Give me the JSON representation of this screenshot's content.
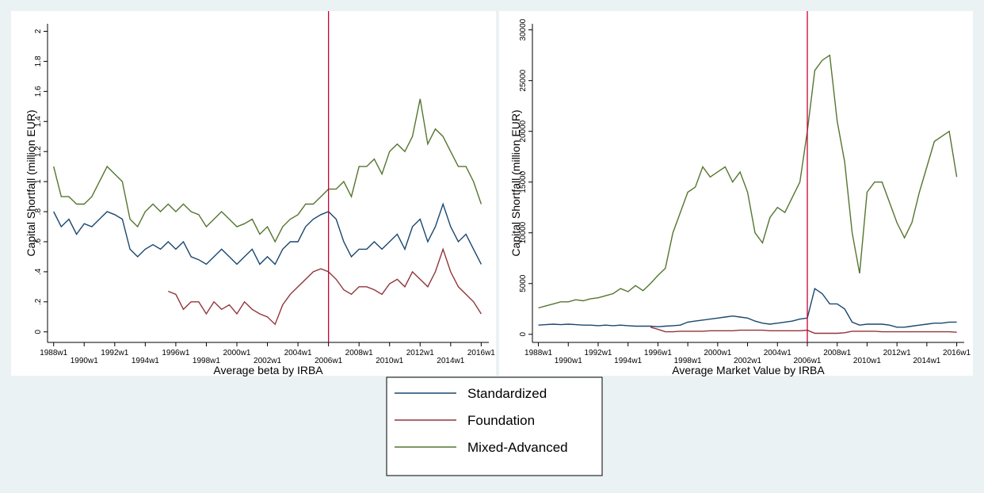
{
  "chart_data": [
    {
      "type": "line",
      "ylabel": "Capital Shortfall (million EUR)",
      "xlabel": "Average beta by IRBA",
      "xlim": [
        1987.6,
        2016.5
      ],
      "ylim": [
        -0.07,
        2.05
      ],
      "xticks": [
        {
          "value": 1988,
          "label": "1988w1"
        },
        {
          "value": 1990,
          "label": "1990w1"
        },
        {
          "value": 1992,
          "label": "1992w1"
        },
        {
          "value": 1994,
          "label": "1994w1"
        },
        {
          "value": 1996,
          "label": "1996w1"
        },
        {
          "value": 1998,
          "label": "1998w1"
        },
        {
          "value": 2000,
          "label": "2000w1"
        },
        {
          "value": 2002,
          "label": "2002w1"
        },
        {
          "value": 2004,
          "label": "2004w1"
        },
        {
          "value": 2006,
          "label": "2006w1"
        },
        {
          "value": 2008,
          "label": "2008w1"
        },
        {
          "value": 2010,
          "label": "2010w1"
        },
        {
          "value": 2012,
          "label": "2012w1"
        },
        {
          "value": 2014,
          "label": "2014w1"
        },
        {
          "value": 2016,
          "label": "2016w1"
        }
      ],
      "yticks": [
        0,
        {
          "value": 0.2,
          "label": ".2"
        },
        {
          "value": 0.4,
          "label": ".4"
        },
        {
          "value": 0.6,
          "label": ".6"
        },
        {
          "value": 0.8,
          "label": ".8"
        },
        1,
        {
          "value": 1.2,
          "label": "1.2"
        },
        {
          "value": 1.4,
          "label": "1.4"
        },
        {
          "value": 1.6,
          "label": "1.6"
        },
        {
          "value": 1.8,
          "label": "1.8"
        },
        2
      ],
      "vline": {
        "value": 2006,
        "color": "#c10534"
      },
      "x": [
        1988,
        1988.5,
        1989,
        1989.5,
        1990,
        1990.5,
        1991,
        1991.5,
        1992,
        1992.5,
        1993,
        1993.5,
        1994,
        1994.5,
        1995,
        1995.5,
        1996,
        1996.5,
        1997,
        1997.5,
        1998,
        1998.5,
        1999,
        1999.5,
        2000,
        2000.5,
        2001,
        2001.5,
        2002,
        2002.5,
        2003,
        2003.5,
        2004,
        2004.5,
        2005,
        2005.5,
        2006,
        2006.5,
        2007,
        2007.5,
        2008,
        2008.5,
        2009,
        2009.5,
        2010,
        2010.5,
        2011,
        2011.5,
        2012,
        2012.5,
        2013,
        2013.5,
        2014,
        2014.5,
        2015,
        2015.5,
        2016
      ],
      "series": [
        {
          "name": "Standardized",
          "color": "#1a476f",
          "values": [
            0.8,
            0.7,
            0.75,
            0.65,
            0.72,
            0.7,
            0.75,
            0.8,
            0.78,
            0.75,
            0.55,
            0.5,
            0.55,
            0.58,
            0.55,
            0.6,
            0.55,
            0.6,
            0.5,
            0.48,
            0.45,
            0.5,
            0.55,
            0.5,
            0.45,
            0.5,
            0.55,
            0.45,
            0.5,
            0.45,
            0.55,
            0.6,
            0.6,
            0.7,
            0.75,
            0.78,
            0.8,
            0.75,
            0.6,
            0.5,
            0.55,
            0.55,
            0.6,
            0.55,
            0.6,
            0.65,
            0.55,
            0.7,
            0.75,
            0.6,
            0.7,
            0.85,
            0.7,
            0.6,
            0.65,
            0.55,
            0.45
          ]
        },
        {
          "name": "Foundation",
          "color": "#90353b",
          "values": [
            null,
            null,
            null,
            null,
            null,
            null,
            null,
            null,
            null,
            null,
            null,
            null,
            null,
            null,
            null,
            0.27,
            0.25,
            0.15,
            0.2,
            0.2,
            0.12,
            0.2,
            0.15,
            0.18,
            0.12,
            0.2,
            0.15,
            0.12,
            0.1,
            0.05,
            0.18,
            0.25,
            0.3,
            0.35,
            0.4,
            0.42,
            0.4,
            0.35,
            0.28,
            0.25,
            0.3,
            0.3,
            0.28,
            0.25,
            0.32,
            0.35,
            0.3,
            0.4,
            0.35,
            0.3,
            0.4,
            0.55,
            0.4,
            0.3,
            0.25,
            0.2,
            0.12
          ]
        },
        {
          "name": "Mixed-Advanced",
          "color": "#55752f",
          "values": [
            1.1,
            0.9,
            0.9,
            0.85,
            0.85,
            0.9,
            1.0,
            1.1,
            1.05,
            1.0,
            0.75,
            0.7,
            0.8,
            0.85,
            0.8,
            0.85,
            0.8,
            0.85,
            0.8,
            0.78,
            0.7,
            0.75,
            0.8,
            0.75,
            0.7,
            0.72,
            0.75,
            0.65,
            0.7,
            0.6,
            0.7,
            0.75,
            0.78,
            0.85,
            0.85,
            0.9,
            0.95,
            0.95,
            1.0,
            0.9,
            1.1,
            1.1,
            1.15,
            1.05,
            1.2,
            1.25,
            1.2,
            1.3,
            1.55,
            1.25,
            1.35,
            1.3,
            1.2,
            1.1,
            1.1,
            1.0,
            0.85
          ]
        }
      ]
    },
    {
      "type": "line",
      "ylabel": "Capital Shortfall (million EUR)",
      "xlabel": "Average Market Value by IRBA",
      "xlim": [
        1987.6,
        2016.5
      ],
      "ylim": [
        -800,
        30600
      ],
      "xticks": [
        {
          "value": 1988,
          "label": "1988w1"
        },
        {
          "value": 1990,
          "label": "1990w1"
        },
        {
          "value": 1992,
          "label": "1992w1"
        },
        {
          "value": 1994,
          "label": "1994w1"
        },
        {
          "value": 1996,
          "label": "1996w1"
        },
        {
          "value": 1998,
          "label": "1998w1"
        },
        {
          "value": 2000,
          "label": "2000w1"
        },
        {
          "value": 2002,
          "label": "2002w1"
        },
        {
          "value": 2004,
          "label": "2004w1"
        },
        {
          "value": 2006,
          "label": "2006w1"
        },
        {
          "value": 2008,
          "label": "2008w1"
        },
        {
          "value": 2010,
          "label": "2010w1"
        },
        {
          "value": 2012,
          "label": "2012w1"
        },
        {
          "value": 2014,
          "label": "2014w1"
        },
        {
          "value": 2016,
          "label": "2016w1"
        }
      ],
      "yticks": [
        0,
        5000,
        10000,
        15000,
        20000,
        25000,
        30000
      ],
      "vline": {
        "value": 2006,
        "color": "#c10534"
      },
      "x": [
        1988,
        1988.5,
        1989,
        1989.5,
        1990,
        1990.5,
        1991,
        1991.5,
        1992,
        1992.5,
        1993,
        1993.5,
        1994,
        1994.5,
        1995,
        1995.5,
        1996,
        1996.5,
        1997,
        1997.5,
        1998,
        1998.5,
        1999,
        1999.5,
        2000,
        2000.5,
        2001,
        2001.5,
        2002,
        2002.5,
        2003,
        2003.5,
        2004,
        2004.5,
        2005,
        2005.5,
        2006,
        2006.5,
        2007,
        2007.5,
        2008,
        2008.5,
        2009,
        2009.5,
        2010,
        2010.5,
        2011,
        2011.5,
        2012,
        2012.5,
        2013,
        2013.5,
        2014,
        2014.5,
        2015,
        2015.5,
        2016
      ],
      "series": [
        {
          "color": "#1a476f",
          "values": [
            900,
            950,
            1000,
            950,
            1000,
            950,
            900,
            900,
            850,
            900,
            850,
            900,
            850,
            800,
            800,
            800,
            750,
            800,
            850,
            900,
            1200,
            1300,
            1400,
            1500,
            1600,
            1700,
            1800,
            1700,
            1600,
            1300,
            1100,
            1000,
            1100,
            1200,
            1300,
            1500,
            1600,
            4500,
            4000,
            3000,
            3000,
            2500,
            1200,
            900,
            1000,
            1000,
            1000,
            900,
            700,
            700,
            800,
            900,
            1000,
            1100,
            1100,
            1200,
            1200
          ]
        },
        {
          "color": "#90353b",
          "values": [
            null,
            null,
            null,
            null,
            null,
            null,
            null,
            null,
            null,
            null,
            null,
            null,
            null,
            null,
            null,
            700,
            500,
            250,
            250,
            300,
            300,
            300,
            300,
            350,
            350,
            350,
            350,
            400,
            400,
            400,
            400,
            350,
            350,
            350,
            350,
            350,
            400,
            100,
            100,
            100,
            100,
            150,
            300,
            300,
            300,
            300,
            250,
            250,
            250,
            250,
            250,
            250,
            250,
            250,
            250,
            250,
            200
          ]
        },
        {
          "color": "#55752f",
          "values": [
            2600,
            2800,
            3000,
            3200,
            3200,
            3400,
            3300,
            3500,
            3600,
            3800,
            4000,
            4500,
            4200,
            4800,
            4300,
            5000,
            5800,
            6500,
            10000,
            12000,
            14000,
            14500,
            16500,
            15500,
            16000,
            16500,
            15000,
            16000,
            14000,
            10000,
            9000,
            11500,
            12500,
            12000,
            13500,
            15000,
            20000,
            26000,
            27000,
            27500,
            21000,
            17000,
            10000,
            6000,
            14000,
            15000,
            15000,
            13000,
            11000,
            9500,
            11000,
            14000,
            16500,
            19000,
            19500,
            20000,
            15500
          ]
        }
      ]
    }
  ]
}
